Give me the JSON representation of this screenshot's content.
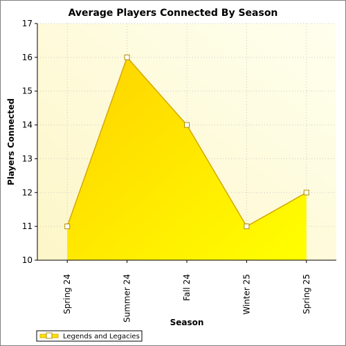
{
  "chart_data": {
    "type": "area",
    "title": "Average Players Connected By Season",
    "xlabel": "Season",
    "ylabel": "Players Connected",
    "categories": [
      "Spring 24",
      "Summer 24",
      "Fall 24",
      "Winter 25",
      "Spring 25"
    ],
    "series": [
      {
        "name": "Legends and Legacies",
        "values": [
          11,
          16,
          14,
          11,
          12
        ],
        "color": "#ffe000"
      }
    ],
    "ylim": [
      10,
      17
    ],
    "yticks": [
      10,
      11,
      12,
      13,
      14,
      15,
      16,
      17
    ],
    "grid": true,
    "legend": "bottom-left"
  }
}
